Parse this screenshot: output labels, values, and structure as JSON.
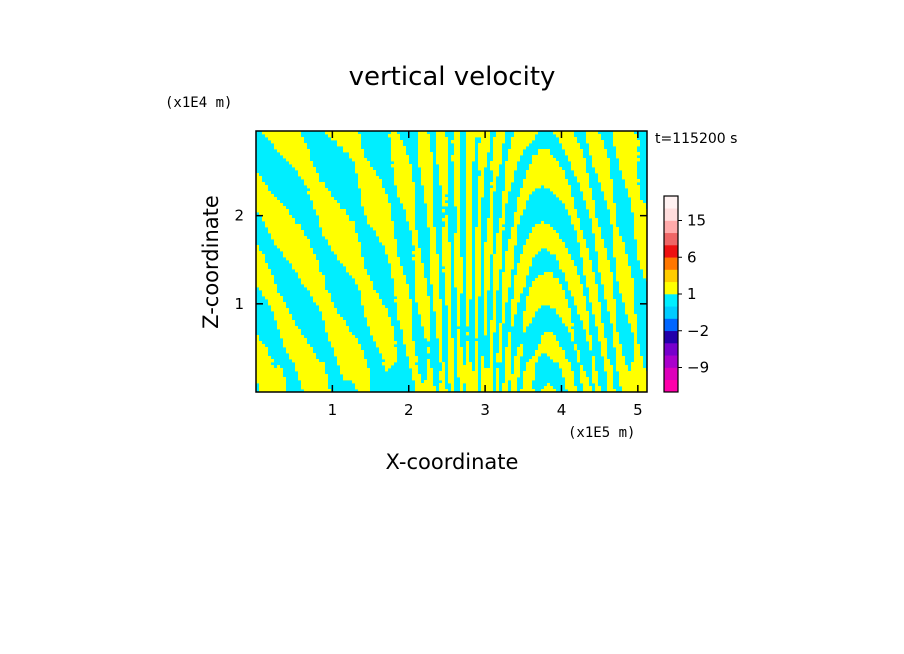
{
  "chart_data": {
    "type": "heatmap",
    "title": "vertical velocity",
    "xlabel": "X-coordinate",
    "ylabel": "Z-coordinate",
    "x_unit": "(x1E5 m)",
    "y_unit": "(x1E4 m)",
    "time_label": "t=115200 s",
    "xlim": [
      0,
      5.12
    ],
    "ylim": [
      0,
      2.96
    ],
    "x_ticks": [
      {
        "value": 1,
        "label": "1"
      },
      {
        "value": 2,
        "label": "2"
      },
      {
        "value": 3,
        "label": "3"
      },
      {
        "value": 4,
        "label": "4"
      },
      {
        "value": 5,
        "label": "5"
      }
    ],
    "y_ticks": [
      {
        "value": 1,
        "label": "1"
      },
      {
        "value": 2,
        "label": "2"
      }
    ],
    "field_colors": {
      "positive": "#ffff00",
      "negative": "#00eeff"
    },
    "colorbar": {
      "levels": [
        -12,
        -9,
        -6,
        -4,
        -2,
        -1,
        0,
        1,
        2,
        4,
        6,
        9,
        12,
        15,
        18,
        24
      ],
      "colors": [
        "#ff00aa",
        "#dd00bb",
        "#aa00cc",
        "#7700cc",
        "#2200aa",
        "#0066ff",
        "#00ccff",
        "#00eeff",
        "#ffff00",
        "#ffcc00",
        "#ff7700",
        "#ee1111",
        "#ee6666",
        "#ffaaaa",
        "#ffdddd",
        "#fff2f2"
      ],
      "tick_labels": [
        {
          "value": 15,
          "label": "15"
        },
        {
          "value": 6,
          "label": "6"
        },
        {
          "value": 1,
          "label": "1"
        },
        {
          "value": -2,
          "label": "−2"
        },
        {
          "value": -9,
          "label": "−9"
        }
      ]
    }
  }
}
